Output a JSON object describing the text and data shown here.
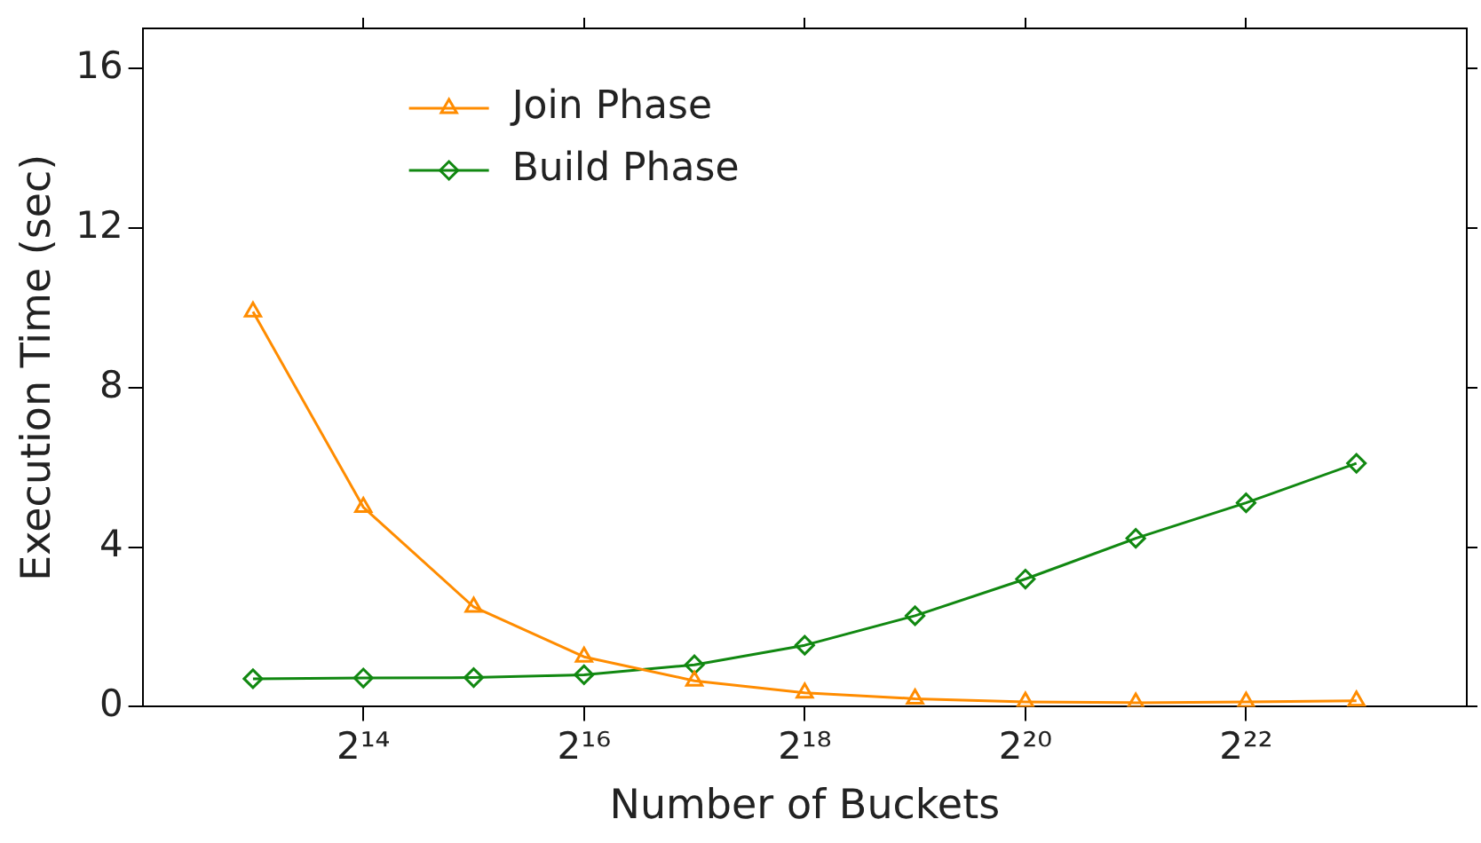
{
  "chart_data": {
    "type": "line",
    "xlabel": "Number of Buckets",
    "ylabel": "Execution Time (sec)",
    "log": "x",
    "x": [
      8192,
      16384,
      32768,
      65536,
      131072,
      262144,
      524288,
      1048576,
      2097152,
      4194304,
      8388608
    ],
    "series": [
      {
        "name": "Join Phase",
        "color": "#ff8c00",
        "marker": "triangle",
        "values": [
          9.9,
          5.0,
          2.5,
          1.25,
          0.65,
          0.35,
          0.2,
          0.12,
          0.1,
          0.12,
          0.15
        ]
      },
      {
        "name": "Build Phase",
        "color": "#118811",
        "marker": "diamond",
        "values": [
          0.7,
          0.72,
          0.73,
          0.8,
          1.05,
          1.54,
          2.28,
          3.2,
          4.22,
          5.11,
          6.1
        ]
      }
    ],
    "xlim": [
      4096,
      16777216
    ],
    "xticks": [
      {
        "value": 16384,
        "label": "2¹⁴"
      },
      {
        "value": 65536,
        "label": "2¹⁶"
      },
      {
        "value": 262144,
        "label": "2¹⁸"
      },
      {
        "value": 1048576,
        "label": "2²⁰"
      },
      {
        "value": 4194304,
        "label": "2²²"
      }
    ],
    "ylim": [
      0,
      17
    ],
    "yticks": [
      0,
      4,
      8,
      12,
      16
    ],
    "grid": false,
    "legend": "top left",
    "line_style": "solid"
  }
}
